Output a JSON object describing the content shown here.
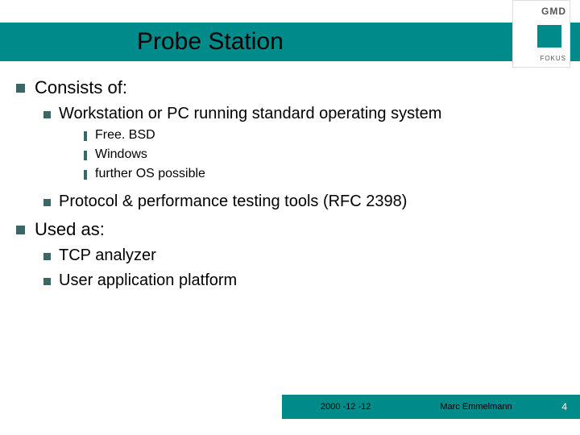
{
  "title": "Probe Station",
  "logo": {
    "brand": "GMD",
    "sub": "FOKUS"
  },
  "colors": {
    "accent": "#008b8b",
    "bullet": "#3a6666",
    "text": "#000000",
    "page_number": "#ffffff"
  },
  "bullets": {
    "l1_a": "Consists of:",
    "l2_a": "Workstation or PC running standard operating system",
    "l3_a": "Free. BSD",
    "l3_b": "Windows",
    "l3_c": "further OS possible",
    "l2_b": "Protocol & performance testing tools (RFC 2398)",
    "l1_b": "Used as:",
    "l2_c": "TCP analyzer",
    "l2_d": "User application platform"
  },
  "footer": {
    "date": "2000 -12 -12",
    "author": "Marc Emmelmann",
    "page": "4"
  },
  "typography": {
    "title_fontsize": 30,
    "l1_fontsize": 22,
    "l2_fontsize": 20,
    "l3_fontsize": 16,
    "footer_fontsize": 11
  }
}
